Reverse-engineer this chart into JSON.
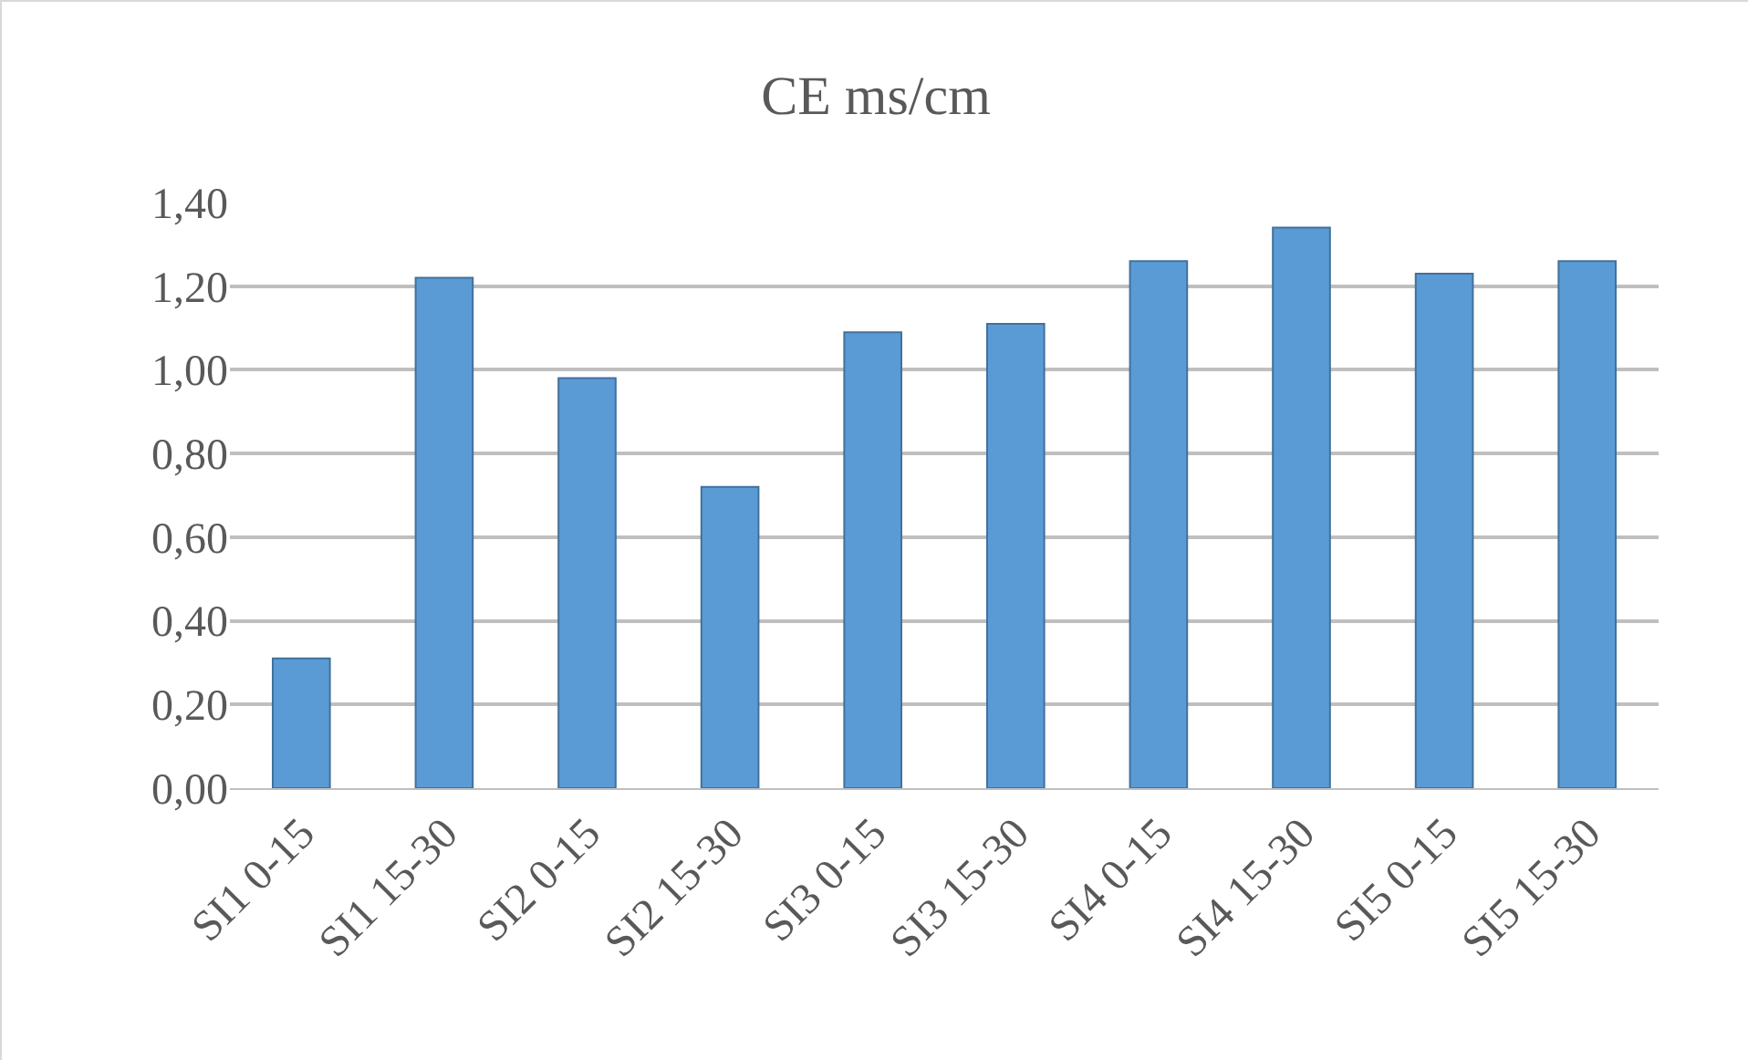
{
  "chart_data": {
    "type": "bar",
    "title": "CE ms/cm",
    "categories": [
      "SI1 0-15",
      "SI1 15-30",
      "SI2 0-15",
      "SI2 15-30",
      "SI3 0-15",
      "SI3 15-30",
      "SI4 0-15",
      "SI4 15-30",
      "SI5 0-15",
      "SI5 15-30"
    ],
    "values": [
      0.31,
      1.22,
      0.98,
      0.72,
      1.09,
      1.11,
      1.26,
      1.34,
      1.23,
      1.26
    ],
    "color": "#5b9bd5",
    "ylim": [
      0,
      1.4
    ],
    "yticks": [
      {
        "value": 0,
        "label": "0,00"
      },
      {
        "value": 0.2,
        "label": "0,20"
      },
      {
        "value": 0.4,
        "label": "0,40"
      },
      {
        "value": 0.6,
        "label": "0,60"
      },
      {
        "value": 0.8,
        "label": "0,80"
      },
      {
        "value": 1,
        "label": "1,00"
      },
      {
        "value": 1.2,
        "label": "1,20"
      },
      {
        "value": 1.4,
        "label": "1,40"
      }
    ],
    "grid": "y"
  }
}
